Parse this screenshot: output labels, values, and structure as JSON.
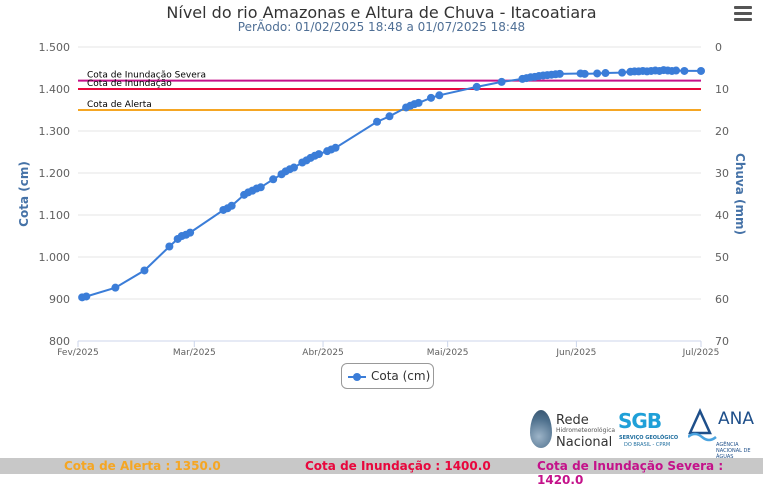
{
  "title": "Nível do rio Amazonas e Altura de Chuva - Itacoatiara",
  "subtitle": "PerÃodo: 01/02/2025 18:48 a 01/07/2025 18:48",
  "colors": {
    "series": "#3b7dd8",
    "alerta": "#f5a623",
    "inundacao": "#e8073d",
    "severa": "#c4128a",
    "axis_title": "#4572a7"
  },
  "footer": {
    "alerta": "Cota de Alerta : 1350.0",
    "inundacao": "Cota de Inundação : 1400.0",
    "severa": "Cota de Inundação Severa : 1420.0"
  },
  "logos": {
    "rede_line1": "Rede",
    "rede_line2": "Hidrometeorológica",
    "rede_line3": "Nacional",
    "sgb_main": "SGB",
    "sgb_line1": "SERVIÇO GEOLÓGICO",
    "sgb_line2": "DO BRASIL - CPRM",
    "ana_main": "ANA",
    "ana_line": "AGÊNCIA NACIONAL DE ÁGUAS"
  },
  "chart_data": {
    "type": "line",
    "x_type": "date",
    "x_range": [
      "2025-02-01",
      "2025-07-01"
    ],
    "x_ticks": [
      {
        "date": "2025-02-01",
        "label": "Fev/2025"
      },
      {
        "date": "2025-03-01",
        "label": "Mar/2025"
      },
      {
        "date": "2025-04-01",
        "label": "Abr/2025"
      },
      {
        "date": "2025-05-01",
        "label": "Mai/2025"
      },
      {
        "date": "2025-06-01",
        "label": "Jun/2025"
      },
      {
        "date": "2025-07-01",
        "label": "Jul/2025"
      }
    ],
    "y_left": {
      "title": "Cota (cm)",
      "range": [
        800,
        1500
      ],
      "ticks": [
        {
          "value": 800,
          "label": "800"
        },
        {
          "value": 900,
          "label": "900"
        },
        {
          "value": 1000,
          "label": "1.000"
        },
        {
          "value": 1100,
          "label": "1.100"
        },
        {
          "value": 1200,
          "label": "1.200"
        },
        {
          "value": 1300,
          "label": "1.300"
        },
        {
          "value": 1400,
          "label": "1.400"
        },
        {
          "value": 1500,
          "label": "1.500"
        }
      ]
    },
    "y_right": {
      "title": "Chuva (mm)",
      "range": [
        70,
        0
      ],
      "ticks": [
        {
          "value": 0,
          "label": "0"
        },
        {
          "value": 10,
          "label": "10"
        },
        {
          "value": 20,
          "label": "20"
        },
        {
          "value": 30,
          "label": "30"
        },
        {
          "value": 40,
          "label": "40"
        },
        {
          "value": 50,
          "label": "50"
        },
        {
          "value": 60,
          "label": "60"
        },
        {
          "value": 70,
          "label": "70"
        }
      ]
    },
    "grid": "horizontal",
    "legend": "bottom-center",
    "plot_lines": [
      {
        "value": 1420,
        "label": "Cota de Inundação Severa",
        "color": "#c4128a"
      },
      {
        "value": 1400,
        "label": "Cota de Inundação",
        "color": "#e8073d"
      },
      {
        "value": 1350,
        "label": "Cota de Alerta",
        "color": "#f5a623"
      }
    ],
    "series": [
      {
        "name": "Cota (cm)",
        "color": "#3b7dd8",
        "points": [
          [
            "2025-02-02",
            904
          ],
          [
            "2025-02-03",
            906
          ],
          [
            "2025-02-10",
            927
          ],
          [
            "2025-02-17",
            968
          ],
          [
            "2025-02-23",
            1025
          ],
          [
            "2025-02-25",
            1043
          ],
          [
            "2025-02-26",
            1050
          ],
          [
            "2025-02-27",
            1053
          ],
          [
            "2025-02-28",
            1058
          ],
          [
            "2025-03-08",
            1112
          ],
          [
            "2025-03-09",
            1116
          ],
          [
            "2025-03-10",
            1122
          ],
          [
            "2025-03-13",
            1148
          ],
          [
            "2025-03-14",
            1154
          ],
          [
            "2025-03-15",
            1158
          ],
          [
            "2025-03-16",
            1163
          ],
          [
            "2025-03-17",
            1166
          ],
          [
            "2025-03-20",
            1185
          ],
          [
            "2025-03-22",
            1197
          ],
          [
            "2025-03-23",
            1204
          ],
          [
            "2025-03-24",
            1209
          ],
          [
            "2025-03-25",
            1213
          ],
          [
            "2025-03-27",
            1225
          ],
          [
            "2025-03-28",
            1230
          ],
          [
            "2025-03-29",
            1236
          ],
          [
            "2025-03-30",
            1241
          ],
          [
            "2025-03-31",
            1245
          ],
          [
            "2025-04-02",
            1252
          ],
          [
            "2025-04-03",
            1256
          ],
          [
            "2025-04-04",
            1260
          ],
          [
            "2025-04-14",
            1322
          ],
          [
            "2025-04-17",
            1335
          ],
          [
            "2025-04-21",
            1356
          ],
          [
            "2025-04-22",
            1360
          ],
          [
            "2025-04-23",
            1364
          ],
          [
            "2025-04-24",
            1367
          ],
          [
            "2025-04-27",
            1379
          ],
          [
            "2025-04-29",
            1385
          ],
          [
            "2025-05-08",
            1405
          ],
          [
            "2025-05-14",
            1417
          ],
          [
            "2025-05-19",
            1424
          ],
          [
            "2025-05-20",
            1426
          ],
          [
            "2025-05-21",
            1428
          ],
          [
            "2025-05-22",
            1429
          ],
          [
            "2025-05-23",
            1431
          ],
          [
            "2025-05-24",
            1432
          ],
          [
            "2025-05-25",
            1433
          ],
          [
            "2025-05-26",
            1434
          ],
          [
            "2025-05-27",
            1435
          ],
          [
            "2025-05-28",
            1436
          ],
          [
            "2025-06-02",
            1437
          ],
          [
            "2025-06-03",
            1436
          ],
          [
            "2025-06-06",
            1437
          ],
          [
            "2025-06-08",
            1438
          ],
          [
            "2025-06-12",
            1439
          ],
          [
            "2025-06-14",
            1441
          ],
          [
            "2025-06-15",
            1442
          ],
          [
            "2025-06-16",
            1442
          ],
          [
            "2025-06-17",
            1443
          ],
          [
            "2025-06-18",
            1442
          ],
          [
            "2025-06-19",
            1443
          ],
          [
            "2025-06-20",
            1444
          ],
          [
            "2025-06-21",
            1443
          ],
          [
            "2025-06-22",
            1445
          ],
          [
            "2025-06-23",
            1444
          ],
          [
            "2025-06-24",
            1443
          ],
          [
            "2025-06-25",
            1444
          ],
          [
            "2025-06-27",
            1443
          ],
          [
            "2025-07-01",
            1443
          ]
        ]
      }
    ]
  }
}
